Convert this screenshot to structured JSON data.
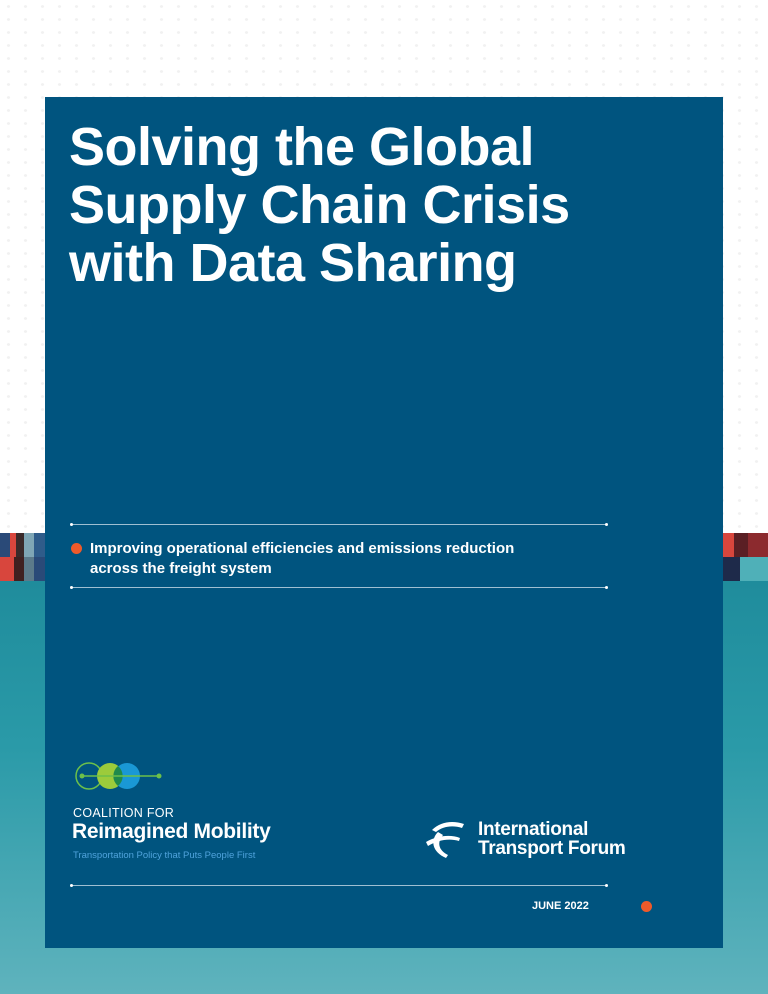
{
  "cover": {
    "title": "Solving the Global Supply Chain Crisis with Data Sharing",
    "subtitle": "Improving operational efficiencies and emissions reduction across the freight system",
    "date": "JUNE 2022",
    "colors": {
      "panel": "#00547f",
      "accent": "#ef5a2a",
      "sea": "#2a9aa8"
    }
  },
  "logos": {
    "coalition": {
      "prefix": "COALITION FOR",
      "name": "Reimagined Mobility",
      "tagline": "Transportation Policy that Puts People First"
    },
    "itf": {
      "line1": "International",
      "line2": "Transport Forum"
    }
  }
}
